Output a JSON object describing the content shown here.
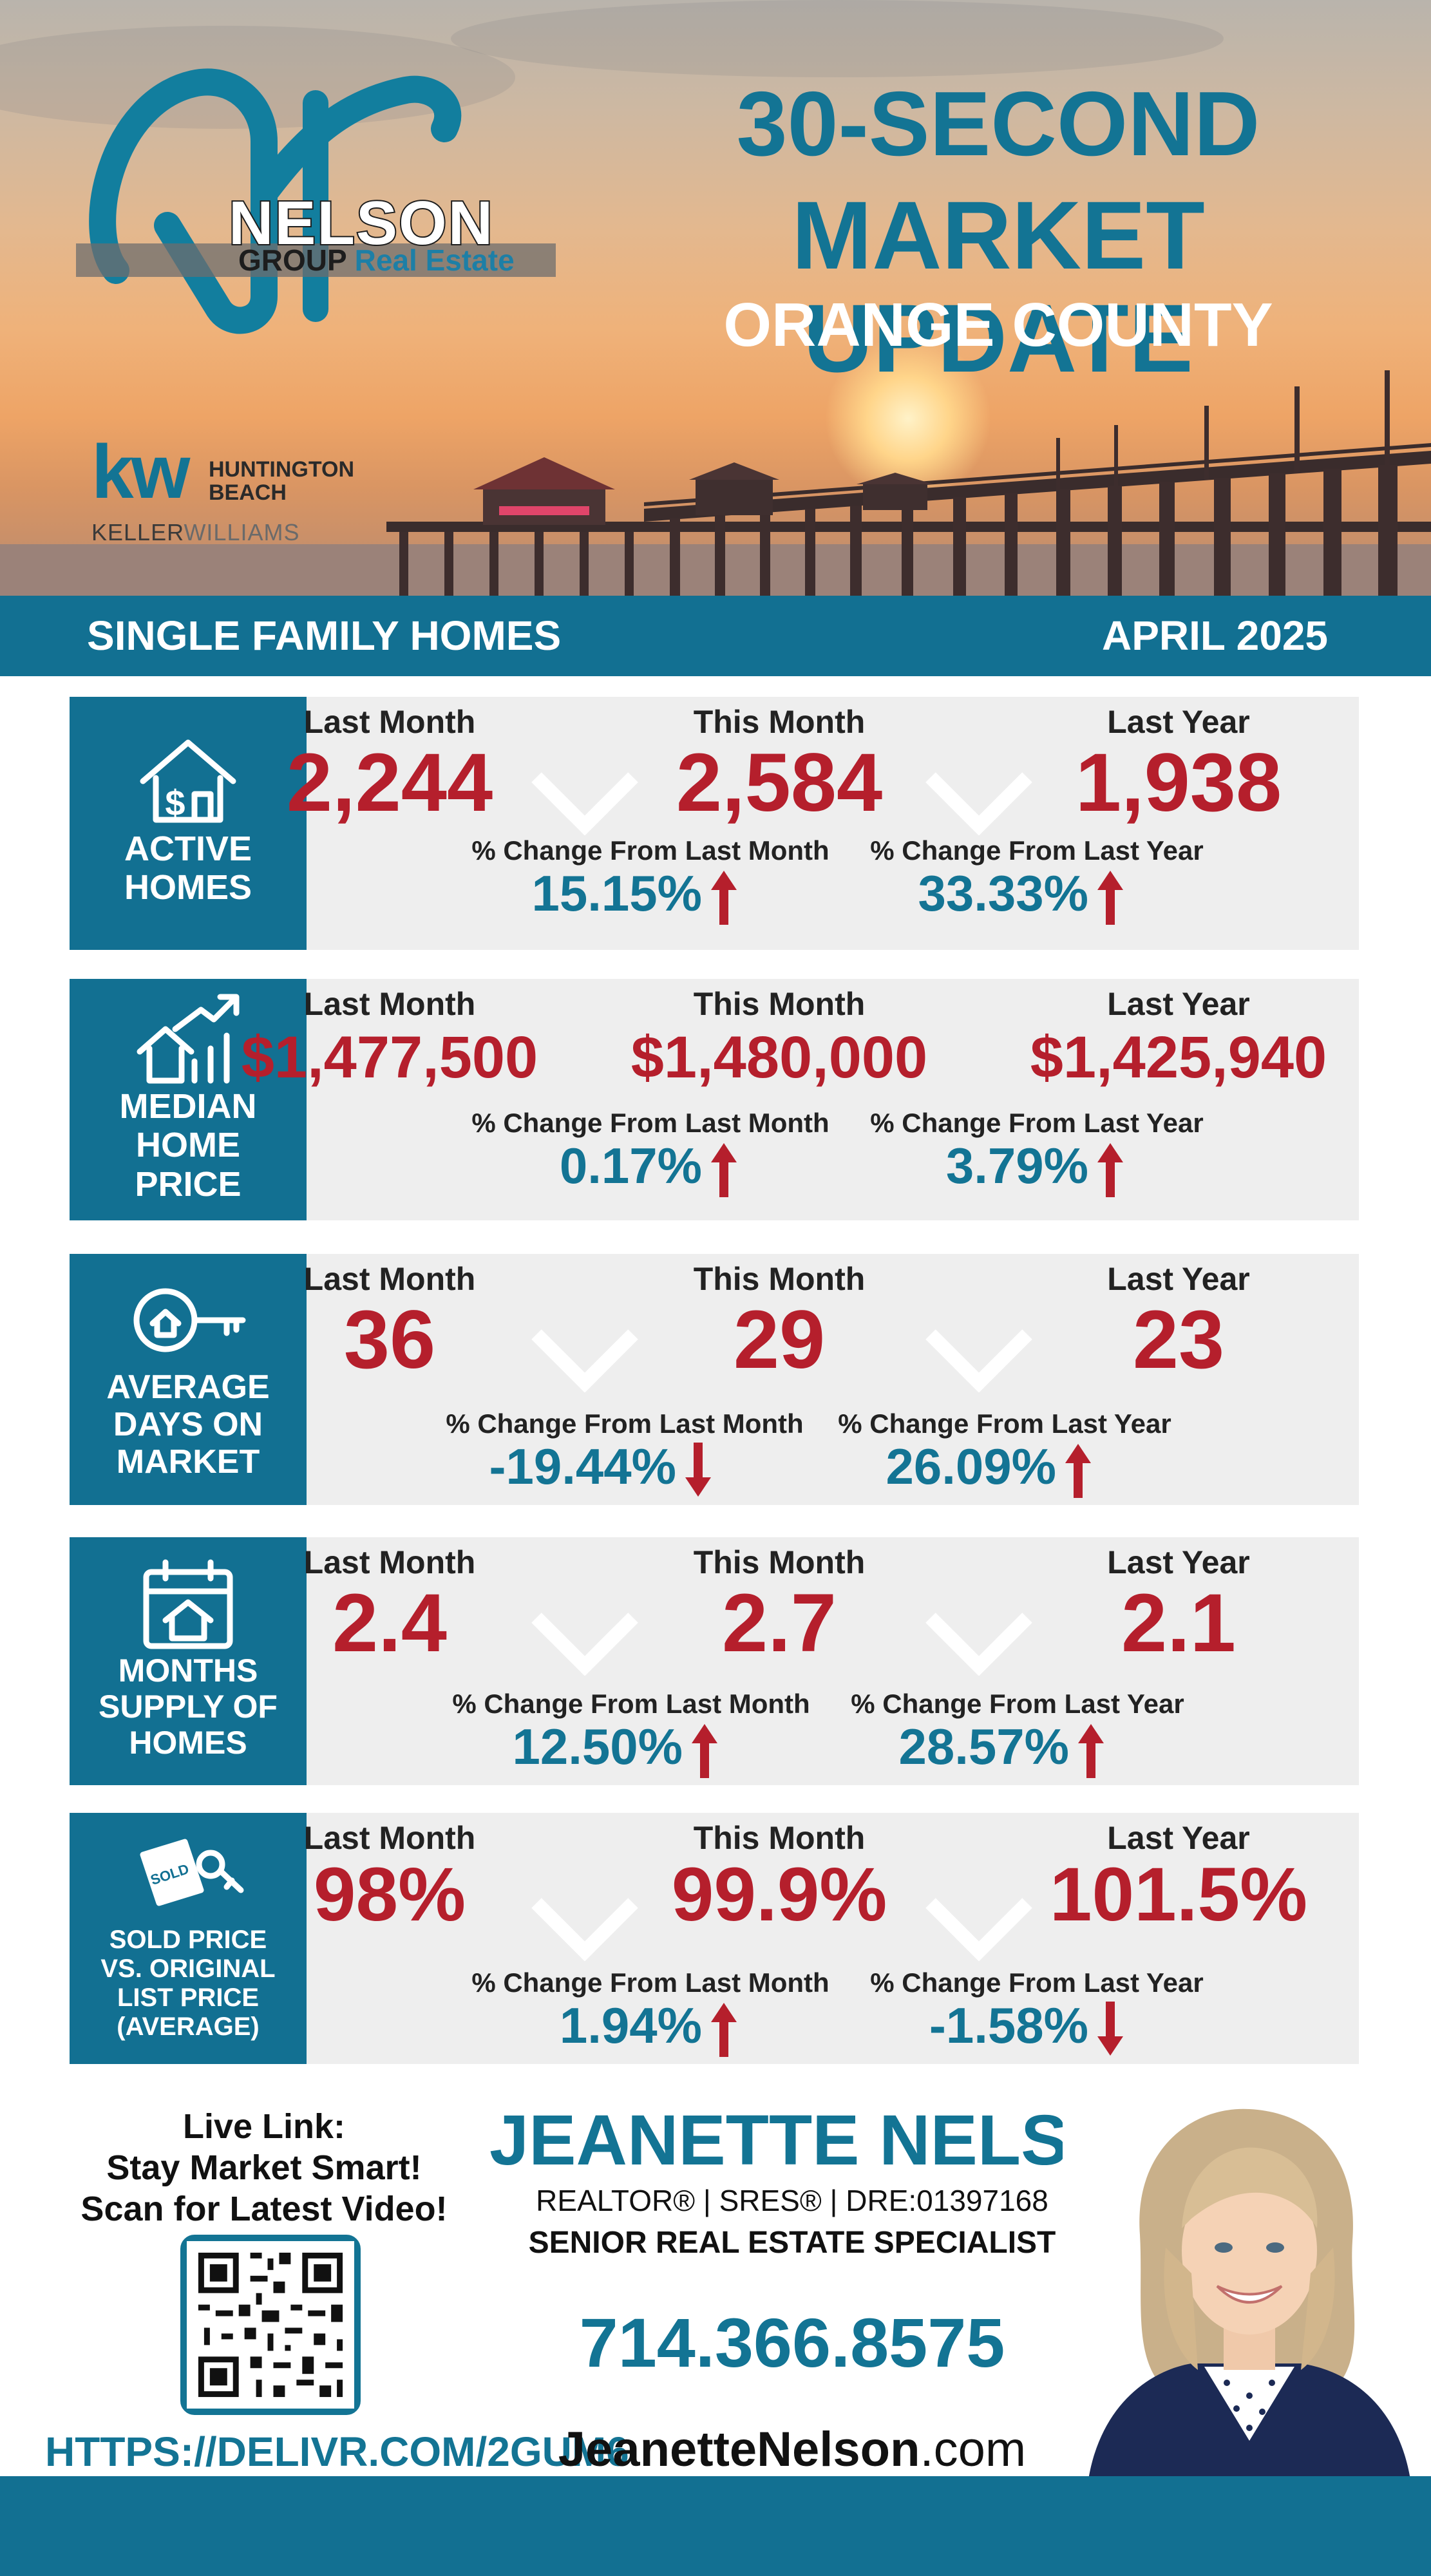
{
  "hero": {
    "brand_name": "NELSON",
    "brand_group": "GROUP",
    "brand_re": "Real Estate",
    "title_line1": "30-SECOND",
    "title_line2": "MARKET UPDATE",
    "title_line3": "ORANGE COUNTY",
    "kw_mark": "kw",
    "kw_city_line1": "HUNTINGTON",
    "kw_city_line2": "BEACH",
    "kw_keller": "KELLER",
    "kw_williams": "WILLIAMS"
  },
  "banner": {
    "left": "SINGLE FAMILY HOMES",
    "right": "APRIL 2025"
  },
  "labels": {
    "last_month": "Last Month",
    "this_month": "This Month",
    "last_year": "Last Year",
    "chg_month": "% Change From Last Month",
    "chg_year": "% Change From Last Year"
  },
  "stats": [
    {
      "label_lines": [
        "ACTIVE",
        "HOMES"
      ],
      "icon": "house-dollar-icon",
      "last_month": "2,244",
      "this_month": "2,584",
      "last_year": "1,938",
      "chg_month": "15.15%",
      "chg_month_dir": "up",
      "chg_year": "33.33%",
      "chg_year_dir": "up"
    },
    {
      "label_lines": [
        "MEDIAN",
        "HOME",
        "PRICE"
      ],
      "icon": "house-chart-icon",
      "last_month": "$1,477,500",
      "this_month": "$1,480,000",
      "last_year": "$1,425,940",
      "chg_month": "0.17%",
      "chg_month_dir": "up",
      "chg_year": "3.79%",
      "chg_year_dir": "up"
    },
    {
      "label_lines": [
        "AVERAGE",
        "DAYS ON",
        "MARKET"
      ],
      "icon": "house-key-icon",
      "last_month": "36",
      "this_month": "29",
      "last_year": "23",
      "chg_month": "-19.44%",
      "chg_month_dir": "down",
      "chg_year": "26.09%",
      "chg_year_dir": "up"
    },
    {
      "label_lines": [
        "MONTHS",
        "SUPPLY OF",
        "HOMES"
      ],
      "icon": "calendar-house-icon",
      "last_month": "2.4",
      "this_month": "2.7",
      "last_year": "2.1",
      "chg_month": "12.50%",
      "chg_month_dir": "up",
      "chg_year": "28.57%",
      "chg_year_dir": "up"
    },
    {
      "label_lines": [
        "SOLD PRICE",
        "VS. ORIGINAL",
        "LIST PRICE",
        "(AVERAGE)"
      ],
      "icon": "sold-tag-icon",
      "icon_text": "SOLD",
      "last_month": "98%",
      "this_month": "99.9%",
      "last_year": "101.5%",
      "chg_month": "1.94%",
      "chg_month_dir": "up",
      "chg_year": "-1.58%",
      "chg_year_dir": "down"
    }
  ],
  "footer": {
    "live_line1": "Live Link:",
    "live_line2": "Stay Market Smart!",
    "live_line3": "Scan for Latest Video!",
    "url": "HTTPS://DELIVR.COM/2GUM6",
    "agent_name": "JEANETTE NELSON",
    "credentials": "REALTOR®  |  SRES®  |  DRE:01397168",
    "specialty": "SENIOR REAL ESTATE SPECIALIST",
    "phone": "714.366.8575",
    "site_name": "JeanetteNelson",
    "site_tld": ".com"
  },
  "colors": {
    "brand_blue": "#127092",
    "value_red": "#b51f2c",
    "pct_blue": "#137494",
    "panel_gray": "#eeeeee"
  }
}
